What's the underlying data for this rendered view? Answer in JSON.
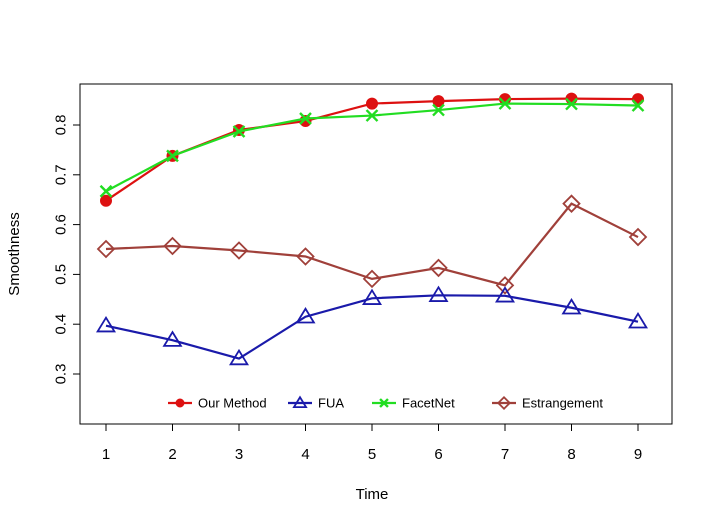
{
  "chart_data": {
    "type": "line",
    "title": "",
    "xlabel": "Time",
    "ylabel": "Smoothness",
    "x": [
      1,
      2,
      3,
      4,
      5,
      6,
      7,
      8,
      9
    ],
    "xlim": [
      0.9,
      9.1
    ],
    "ylim": [
      0.2,
      0.88
    ],
    "yticks": [
      0.3,
      0.4,
      0.5,
      0.6,
      0.7,
      0.8
    ],
    "ytick_labels": [
      "0.3",
      "0.4",
      "0.5",
      "0.6",
      "0.7",
      "0.8"
    ],
    "xtick_labels": [
      "1",
      "2",
      "3",
      "4",
      "5",
      "6",
      "7",
      "8",
      "9"
    ],
    "grid": false,
    "legend_position": "bottom-center",
    "series": [
      {
        "name": "Our Method",
        "marker": "filled-circle",
        "color": "#dd1111",
        "values": [
          0.648,
          0.738,
          0.79,
          0.808,
          0.843,
          0.848,
          0.852,
          0.853,
          0.852
        ]
      },
      {
        "name": "FUA",
        "marker": "open-triangle",
        "color": "#1a1aaa",
        "values": [
          0.397,
          0.368,
          0.331,
          0.415,
          0.452,
          0.458,
          0.457,
          0.433,
          0.405
        ]
      },
      {
        "name": "FacetNet",
        "marker": "cross",
        "color": "#22dd22",
        "values": [
          0.667,
          0.738,
          0.787,
          0.813,
          0.819,
          0.83,
          0.843,
          0.842,
          0.839
        ]
      },
      {
        "name": "Estrangement",
        "marker": "open-diamond",
        "color": "#a0403a",
        "values": [
          0.551,
          0.557,
          0.548,
          0.536,
          0.491,
          0.513,
          0.478,
          0.642,
          0.575
        ]
      }
    ]
  }
}
